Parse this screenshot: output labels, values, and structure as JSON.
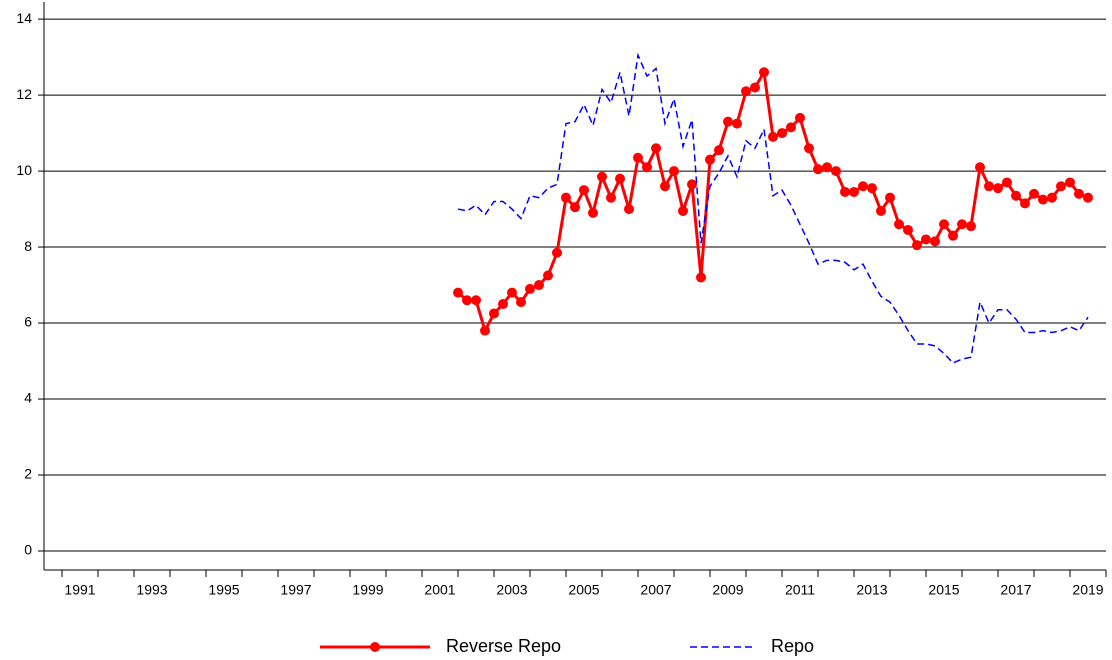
{
  "chart_data": {
    "type": "line",
    "x": [
      2002,
      2002.25,
      2002.5,
      2002.75,
      2003,
      2003.25,
      2003.5,
      2003.75,
      2004,
      2004.25,
      2004.5,
      2004.75,
      2005,
      2005.25,
      2005.5,
      2005.75,
      2006,
      2006.25,
      2006.5,
      2006.75,
      2007,
      2007.25,
      2007.5,
      2007.75,
      2008,
      2008.25,
      2008.5,
      2008.75,
      2009,
      2009.25,
      2009.5,
      2009.75,
      2010,
      2010.25,
      2010.5,
      2010.75,
      2011,
      2011.25,
      2011.5,
      2011.75,
      2012,
      2012.25,
      2012.5,
      2012.75,
      2013,
      2013.25,
      2013.5,
      2013.75,
      2014,
      2014.25,
      2014.5,
      2014.75,
      2015,
      2015.25,
      2015.5,
      2015.75,
      2016,
      2016.25,
      2016.5,
      2016.75,
      2017,
      2017.25,
      2017.5,
      2017.75,
      2018,
      2018.25,
      2018.5,
      2018.75,
      2019,
      2019.25,
      2019.5
    ],
    "series": [
      {
        "name": "Reverse Repo",
        "color": "#ff0000",
        "style": "solid",
        "markers": true,
        "values": [
          6.8,
          6.6,
          6.6,
          5.8,
          6.25,
          6.5,
          6.8,
          6.55,
          6.9,
          7.0,
          7.25,
          7.85,
          9.3,
          9.05,
          9.5,
          8.9,
          9.85,
          9.3,
          9.8,
          9.0,
          10.35,
          10.1,
          10.6,
          9.6,
          10.0,
          8.95,
          9.65,
          7.2,
          10.3,
          10.55,
          11.3,
          11.25,
          12.1,
          12.2,
          12.6,
          10.9,
          11.0,
          11.15,
          11.4,
          10.6,
          10.05,
          10.1,
          10.0,
          9.45,
          9.45,
          9.6,
          9.55,
          8.95,
          9.3,
          8.6,
          8.45,
          8.05,
          8.2,
          8.15,
          8.6,
          8.3,
          8.6,
          8.55,
          10.1,
          9.6,
          9.55,
          9.7,
          9.35,
          9.15,
          9.4,
          9.25,
          9.3,
          9.6,
          9.7,
          9.4,
          9.3
        ]
      },
      {
        "name": "Repo",
        "color": "#0000ff",
        "style": "dashed",
        "markers": false,
        "values": [
          9.0,
          8.95,
          9.1,
          8.85,
          9.2,
          9.2,
          9.0,
          8.75,
          9.35,
          9.3,
          9.55,
          9.65,
          11.25,
          11.3,
          11.75,
          11.2,
          12.15,
          11.8,
          12.6,
          11.45,
          13.05,
          12.5,
          12.7,
          11.25,
          11.9,
          10.65,
          11.35,
          8.1,
          9.6,
          9.95,
          10.4,
          9.85,
          10.8,
          10.6,
          11.1,
          9.35,
          9.5,
          9.1,
          8.6,
          8.1,
          7.55,
          7.65,
          7.65,
          7.6,
          7.4,
          7.55,
          7.1,
          6.7,
          6.55,
          6.2,
          5.8,
          5.45,
          5.45,
          5.4,
          5.2,
          4.95,
          5.05,
          5.1,
          6.55,
          6.0,
          6.35,
          6.35,
          6.1,
          5.75,
          5.75,
          5.8,
          5.75,
          5.8,
          5.9,
          5.8,
          6.15
        ]
      }
    ],
    "xlim": [
      1990.5,
      2020
    ],
    "xticks": [
      1991,
      1993,
      1995,
      1997,
      1999,
      2001,
      2003,
      2005,
      2007,
      2009,
      2011,
      2013,
      2015,
      2017,
      2019
    ],
    "ylim": [
      -0.5,
      14.45
    ],
    "yticks": [
      0,
      2,
      4,
      6,
      8,
      10,
      12,
      14
    ],
    "grid": true
  }
}
